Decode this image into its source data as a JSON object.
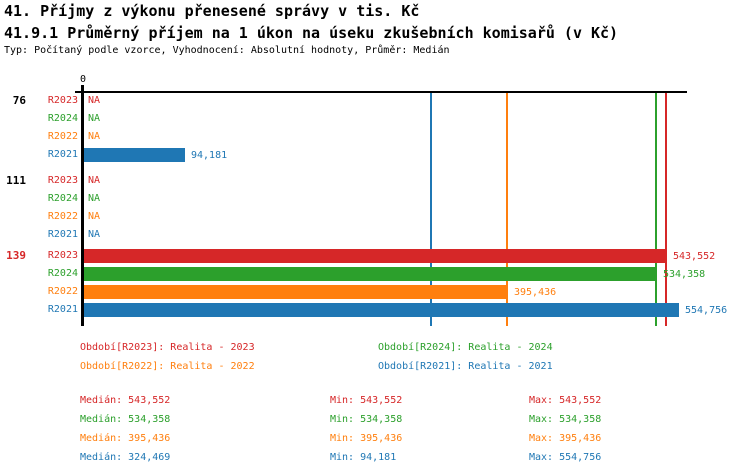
{
  "header": {
    "title": "41. Příjmy z výkonu přenesené správy v tis. Kč",
    "subtitle": "41.9.1 Průměrný příjem na 1 úkon na úseku zkušebních komisařů (v Kč)",
    "meta": "Typ: Počítaný podle vzorce, Vyhodnocení: Absolutní hodnoty, Průměr: Medián"
  },
  "colors": {
    "R2023": "#d62728",
    "R2024": "#2ca02c",
    "R2022": "#ff7f0e",
    "R2021": "#1f77b4",
    "axis": "#000000",
    "group_label_default": "#000000",
    "group_label_highlight": "#d62728"
  },
  "chart_data": {
    "type": "bar",
    "orientation": "horizontal",
    "axis": {
      "zero_label": "0",
      "xlim": [
        0,
        563000
      ],
      "grid": "median-lines-per-series"
    },
    "series_order": [
      "R2023",
      "R2024",
      "R2022",
      "R2021"
    ],
    "groups": [
      {
        "label": "76",
        "label_color": "#000000",
        "values": {
          "R2023": null,
          "R2024": null,
          "R2022": null,
          "R2021": 94181
        },
        "displays": {
          "R2023": "NA",
          "R2024": "NA",
          "R2022": "NA",
          "R2021": "94,181"
        }
      },
      {
        "label": "111",
        "label_color": "#000000",
        "values": {
          "R2023": null,
          "R2024": null,
          "R2022": null,
          "R2021": null
        },
        "displays": {
          "R2023": "NA",
          "R2024": "NA",
          "R2022": "NA",
          "R2021": "NA"
        }
      },
      {
        "label": "139",
        "label_color": "#d62728",
        "values": {
          "R2023": 543552,
          "R2024": 534358,
          "R2022": 395436,
          "R2021": 554756
        },
        "displays": {
          "R2023": "543,552",
          "R2024": "534,358",
          "R2022": "395,436",
          "R2021": "554,756"
        }
      }
    ],
    "median_lines": [
      {
        "series": "R2021",
        "value": 324469
      },
      {
        "series": "R2022",
        "value": 395436
      },
      {
        "series": "R2024",
        "value": 534358
      },
      {
        "series": "R2023",
        "value": 543552
      }
    ]
  },
  "legend": {
    "items": [
      {
        "series": "R2023",
        "label": "Období[R2023]: Realita - 2023"
      },
      {
        "series": "R2024",
        "label": "Období[R2024]: Realita - 2024"
      },
      {
        "series": "R2022",
        "label": "Období[R2022]: Realita - 2022"
      },
      {
        "series": "R2021",
        "label": "Období[R2021]: Realita - 2021"
      }
    ]
  },
  "stats": {
    "rows": [
      {
        "series": "R2023",
        "median": "Medián: 543,552",
        "min": "Min: 543,552",
        "max": "Max: 543,552"
      },
      {
        "series": "R2024",
        "median": "Medián: 534,358",
        "min": "Min: 534,358",
        "max": "Max: 534,358"
      },
      {
        "series": "R2022",
        "median": "Medián: 395,436",
        "min": "Min: 395,436",
        "max": "Max: 395,436"
      },
      {
        "series": "R2021",
        "median": "Medián: 324,469",
        "min": "Min: 94,181",
        "max": "Max: 554,756"
      }
    ]
  }
}
